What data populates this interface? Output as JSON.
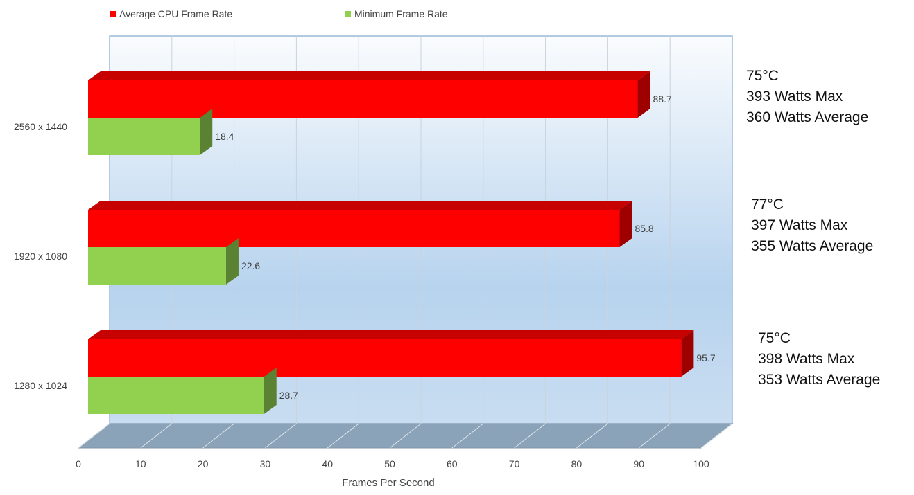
{
  "chart_data": {
    "type": "bar",
    "orientation": "horizontal",
    "categories": [
      "2560 x 1440",
      "1920 x 1080",
      "1280 x 1024"
    ],
    "series": [
      {
        "name": "Average CPU Frame Rate",
        "color": "#ff0000",
        "values": [
          88.7,
          85.8,
          95.7
        ]
      },
      {
        "name": "Minimum Frame Rate",
        "color": "#92d050",
        "values": [
          18.4,
          22.6,
          28.7
        ]
      }
    ],
    "xlabel": "Frames Per Second",
    "xlim": [
      0,
      100
    ],
    "xticks": [
      0,
      10,
      20,
      30,
      40,
      50,
      60,
      70,
      80,
      90,
      100
    ],
    "grid": true,
    "legend_position": "top-left",
    "annotations": [
      {
        "lines": [
          "75°C",
          "393 Watts Max",
          "360 Watts Average"
        ]
      },
      {
        "lines": [
          "77°C",
          "397 Watts Max",
          "355 Watts Average"
        ]
      },
      {
        "lines": [
          "75°C",
          "398 Watts Max",
          "353 Watts Average"
        ]
      }
    ]
  }
}
